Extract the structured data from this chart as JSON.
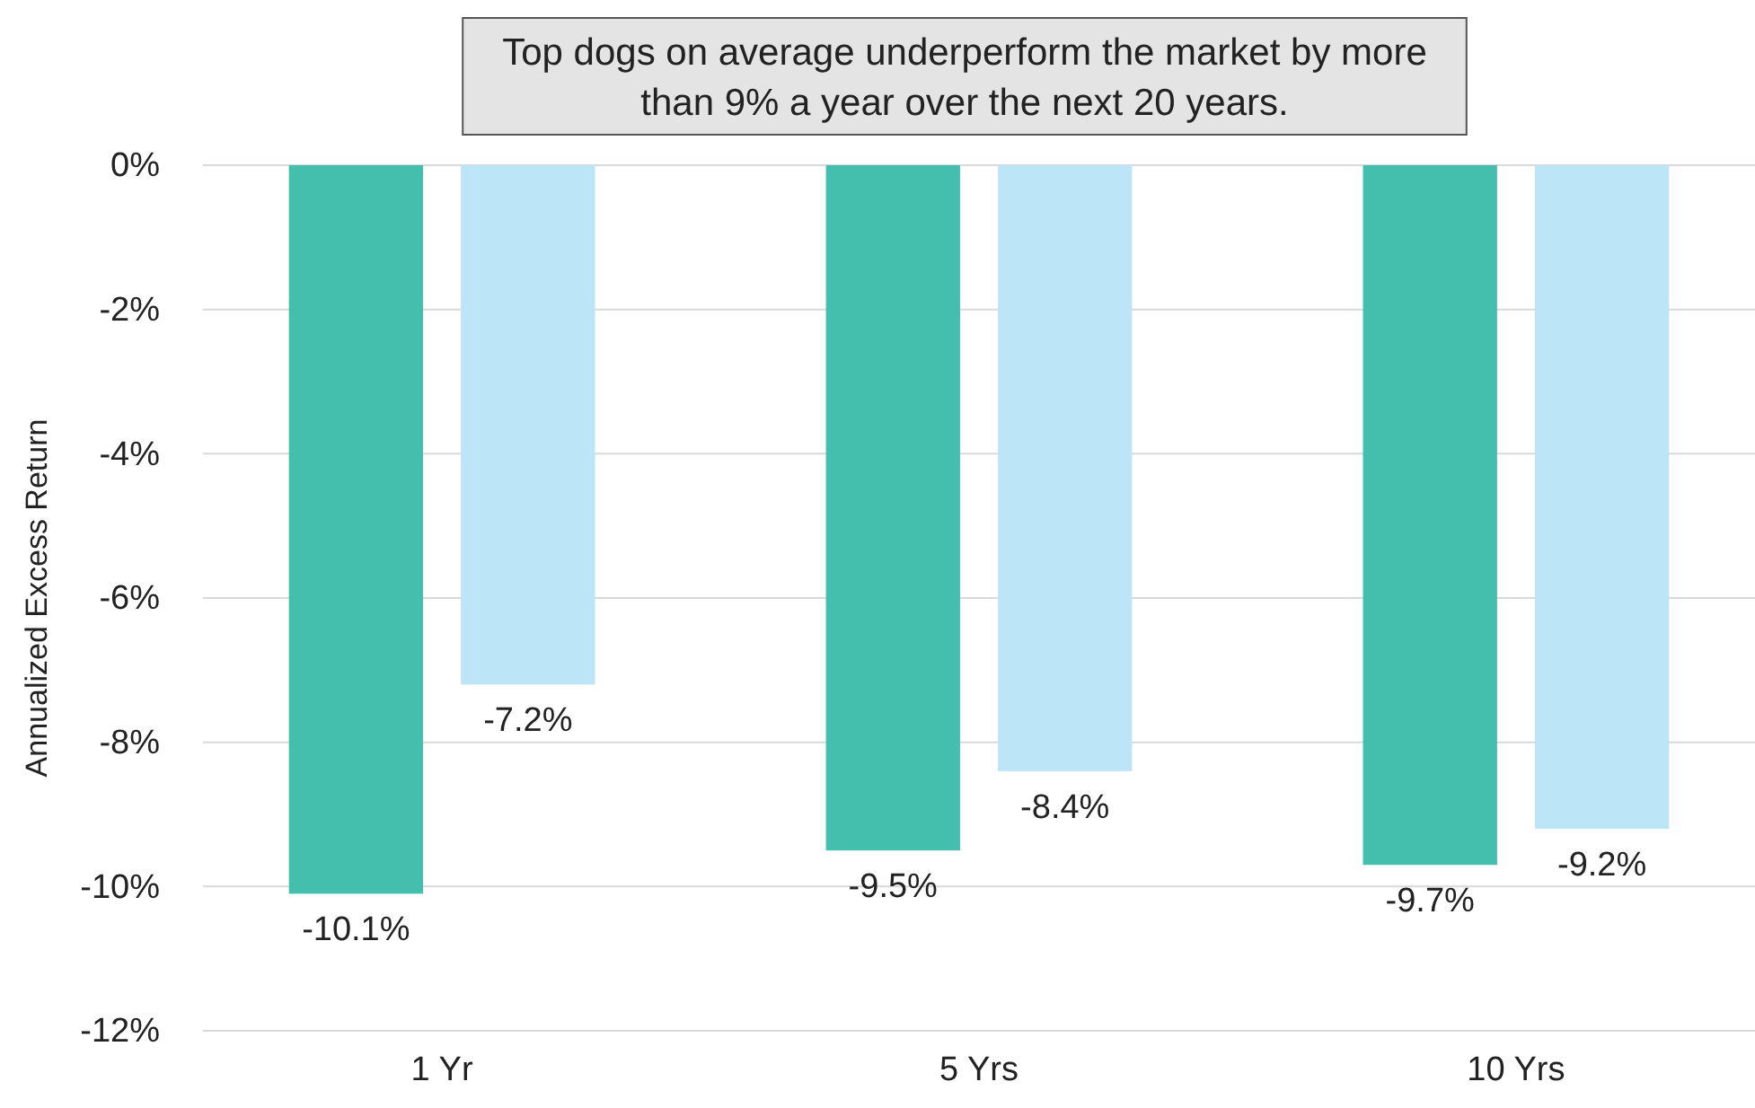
{
  "chart_data": {
    "type": "bar",
    "title": "Top dogs on average underperform the market by more than 9% a year over the next 20 years.",
    "ylabel": "Annualized Excess Return",
    "categories": [
      "1 Yr",
      "5 Yrs",
      "10 Yrs"
    ],
    "series": [
      {
        "color": "#44bfad",
        "values": [
          -10.1,
          -9.5,
          -9.7
        ],
        "value_labels": [
          "-10.1%",
          "-9.5%",
          "-9.7%"
        ]
      },
      {
        "color": "#bde5f8",
        "values": [
          -7.2,
          -8.4,
          -9.2
        ],
        "value_labels": [
          "-7.2%",
          "-8.4%",
          "-9.2%"
        ]
      }
    ],
    "ylim": [
      -12,
      0
    ],
    "yticks": [
      {
        "value": 0,
        "label": "0%"
      },
      {
        "value": -2,
        "label": "-2%"
      },
      {
        "value": -4,
        "label": "-4%"
      },
      {
        "value": -6,
        "label": "-6%"
      },
      {
        "value": -8,
        "label": "-8%"
      },
      {
        "value": -10,
        "label": "-10%"
      },
      {
        "value": -12,
        "label": "-12%"
      }
    ],
    "grid": "y"
  }
}
